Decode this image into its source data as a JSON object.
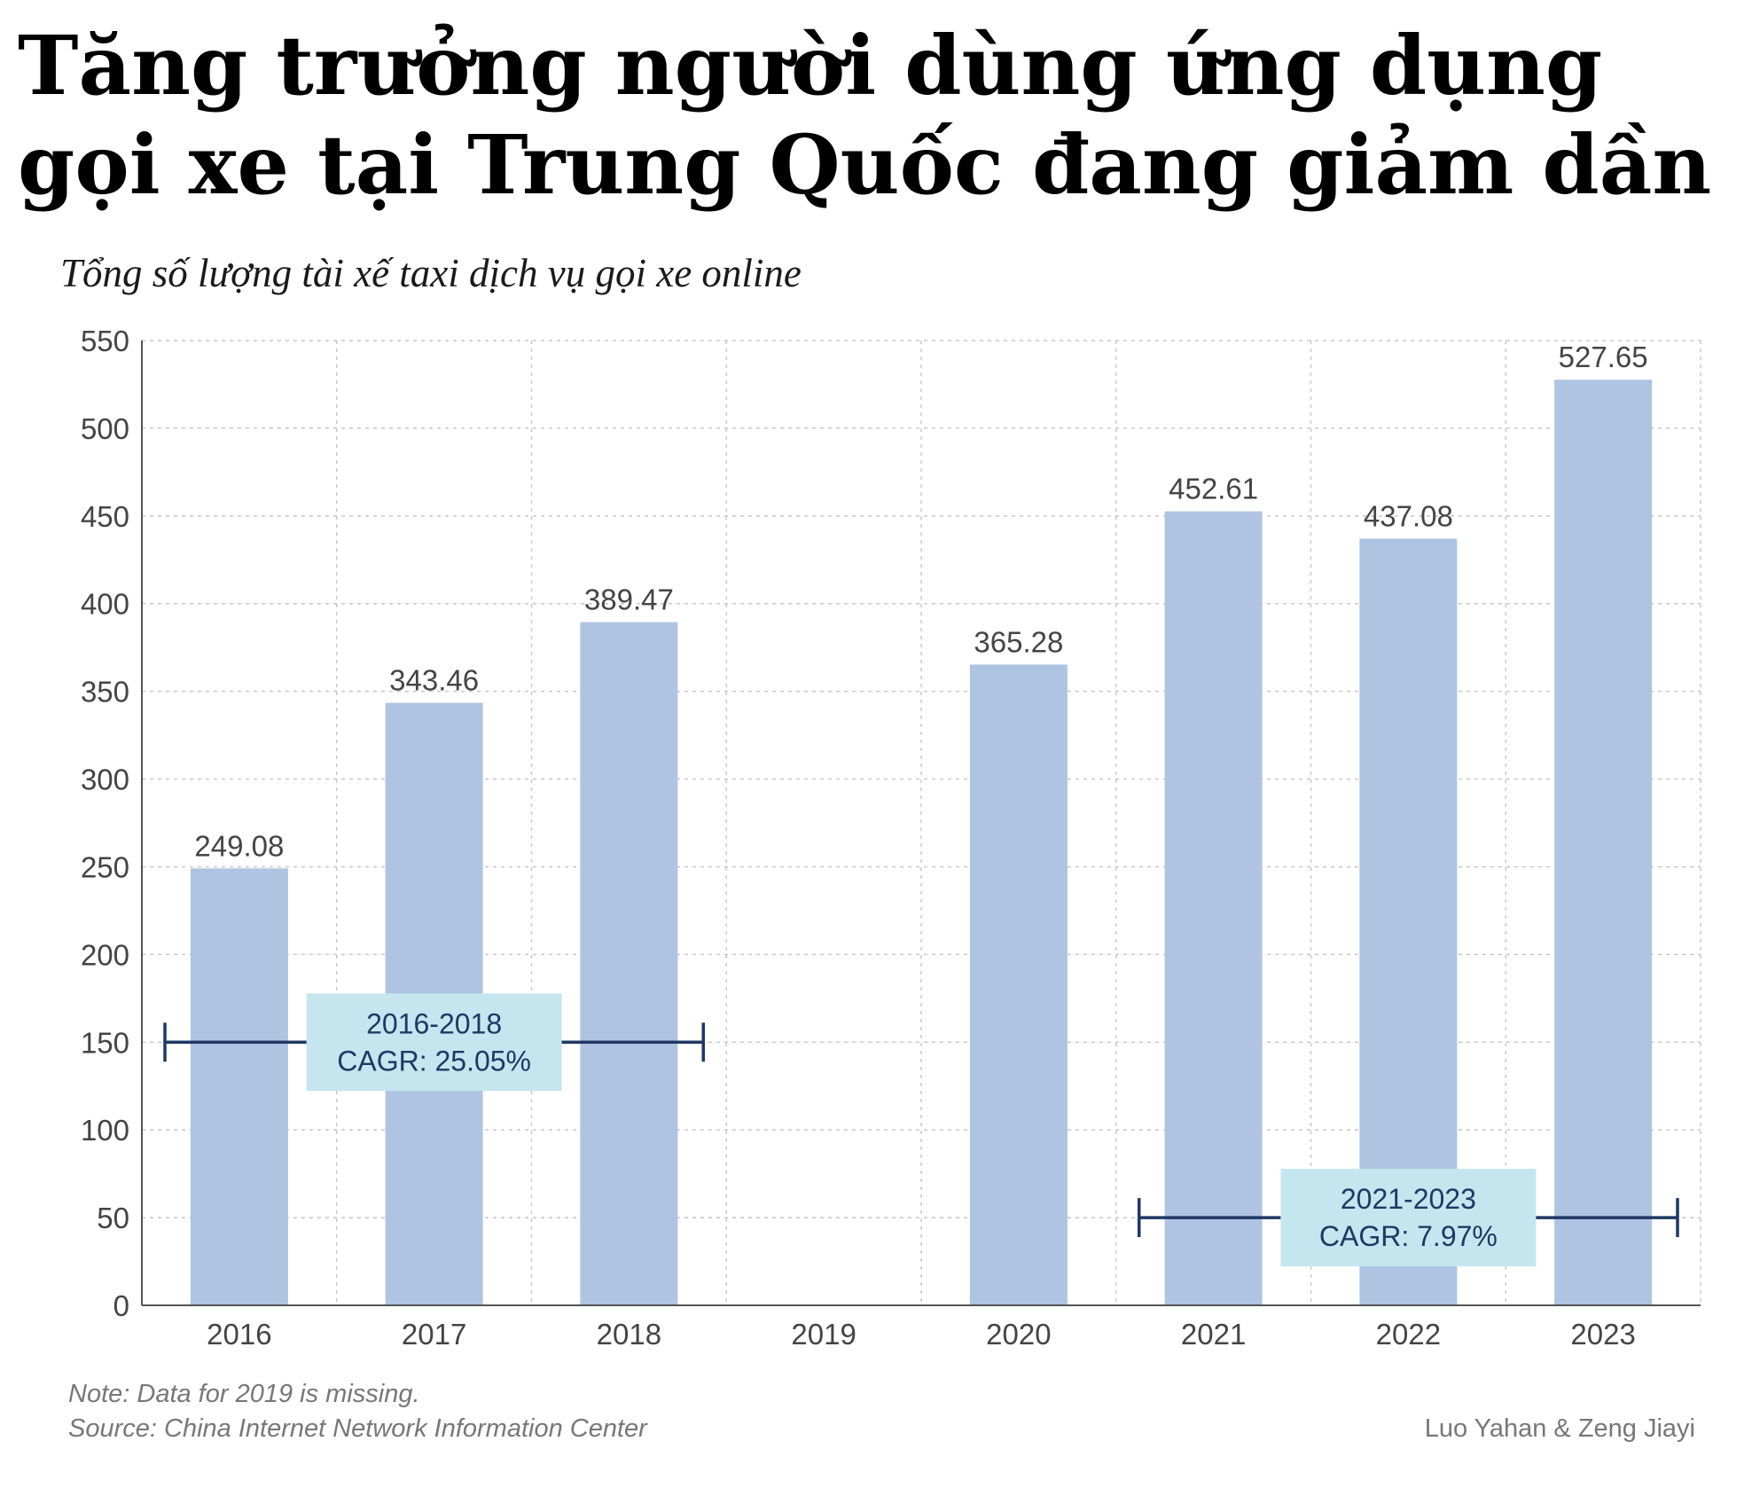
{
  "title": "Tăng trưởng người dùng ứng dụng gọi xe tại Trung Quốc đang giảm dần",
  "subtitle": "Tổng số lượng tài xế taxi dịch vụ gọi xe online",
  "note": "Note: Data for 2019 is missing.",
  "source": "Source: China Internet Network Information Center",
  "credit": "Luo Yahan & Zeng Jiayi",
  "colors": {
    "bar": "#afc4e3",
    "annotation_box": "#c5e6ef",
    "annotation_line": "#1f3864",
    "grid": "#c8c8c8",
    "axis_text": "#444444"
  },
  "chart_data": {
    "type": "bar",
    "categories": [
      "2016",
      "2017",
      "2018",
      "2019",
      "2020",
      "2021",
      "2022",
      "2023"
    ],
    "values": [
      249.08,
      343.46,
      389.47,
      null,
      365.28,
      452.61,
      437.08,
      527.65
    ],
    "value_labels": [
      "249.08",
      "343.46",
      "389.47",
      "",
      "365.28",
      "452.61",
      "437.08",
      "527.65"
    ],
    "ylim": [
      0,
      550
    ],
    "yticks": [
      0,
      50,
      100,
      150,
      200,
      250,
      300,
      350,
      400,
      450,
      500,
      550
    ],
    "grid": true,
    "annotations": [
      {
        "line1": "2016-2018",
        "line2": "CAGR: 25.05%",
        "y": 150,
        "from": "2016",
        "to": "2018"
      },
      {
        "line1": "2021-2023",
        "line2": "CAGR: 7.97%",
        "y": 50,
        "from": "2021",
        "to": "2023"
      }
    ]
  }
}
